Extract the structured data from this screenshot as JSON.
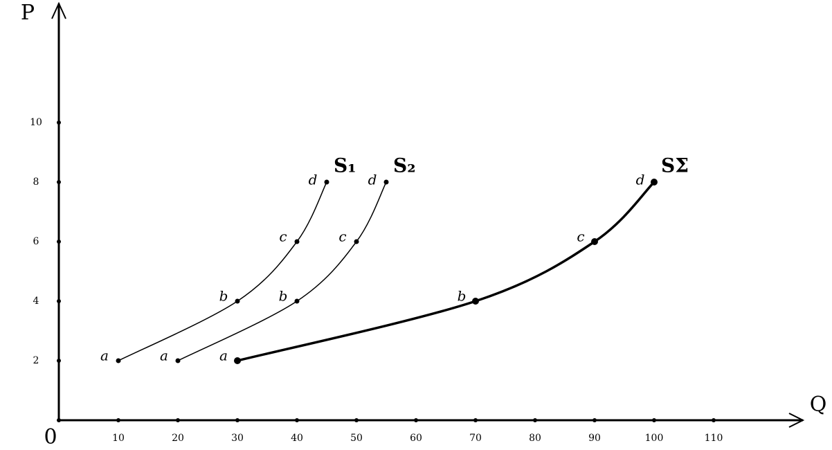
{
  "chart_data": {
    "type": "line",
    "x_label": "Q",
    "y_label": "P",
    "xlim": [
      0,
      125
    ],
    "ylim": [
      0,
      14
    ],
    "xticks": [
      0,
      10,
      20,
      30,
      40,
      50,
      60,
      70,
      80,
      90,
      100,
      110
    ],
    "yticks": [
      2,
      4,
      6,
      8,
      10
    ],
    "series": [
      {
        "name": "S₁",
        "color": "#000000",
        "line_width": 1.5,
        "x": [
          10,
          30,
          40,
          45
        ],
        "values": [
          2,
          4,
          6,
          8
        ],
        "labels": [
          "a",
          "b",
          "c",
          "d"
        ]
      },
      {
        "name": "S₂",
        "color": "#000000",
        "line_width": 1.5,
        "x": [
          20,
          40,
          50,
          55
        ],
        "values": [
          2,
          4,
          6,
          8
        ],
        "labels": [
          "a",
          "b",
          "c",
          "d"
        ]
      },
      {
        "name": "SΣ",
        "color": "#000000",
        "line_width": 3.5,
        "x": [
          30,
          70,
          90,
          100
        ],
        "values": [
          2,
          4,
          6,
          8
        ],
        "labels": [
          "a",
          "b",
          "c",
          "d"
        ]
      }
    ]
  }
}
